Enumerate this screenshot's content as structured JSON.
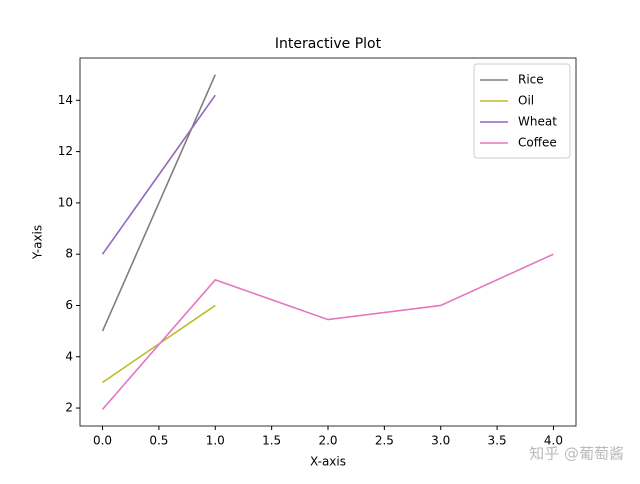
{
  "chart_data": {
    "type": "line",
    "title": "Interactive Plot",
    "x_label": "X-axis",
    "y_label": "Y-axis",
    "series": [
      {
        "name": "Rice",
        "color": "#7f7f7f",
        "x": [
          0,
          1
        ],
        "values": [
          5,
          15
        ]
      },
      {
        "name": "Oil",
        "color": "#bcbd22",
        "x": [
          0,
          1
        ],
        "values": [
          3,
          6
        ]
      },
      {
        "name": "Wheat",
        "color": "#9467bd",
        "x": [
          0,
          1
        ],
        "values": [
          8,
          14.2
        ]
      },
      {
        "name": "Coffee",
        "color": "#e377c2",
        "x": [
          0,
          1,
          2,
          3,
          4
        ],
        "values": [
          1.95,
          7,
          5.45,
          6,
          8
        ]
      }
    ],
    "xlim": [
      -0.2,
      4.2
    ],
    "xticks": [
      {
        "value": 0,
        "label": "0.0"
      },
      {
        "value": 0.5,
        "label": "0.5"
      },
      {
        "value": 1,
        "label": "1.0"
      },
      {
        "value": 1.5,
        "label": "1.5"
      },
      {
        "value": 2,
        "label": "2.0"
      },
      {
        "value": 2.5,
        "label": "2.5"
      },
      {
        "value": 3,
        "label": "3.0"
      },
      {
        "value": 3.5,
        "label": "3.5"
      },
      {
        "value": 4,
        "label": "4.0"
      }
    ],
    "ylim": [
      1.3,
      15.65
    ],
    "yticks": [
      2,
      4,
      6,
      8,
      10,
      12,
      14
    ],
    "legend": "upper right",
    "grid": false
  },
  "watermark": "知乎 @葡萄酱"
}
